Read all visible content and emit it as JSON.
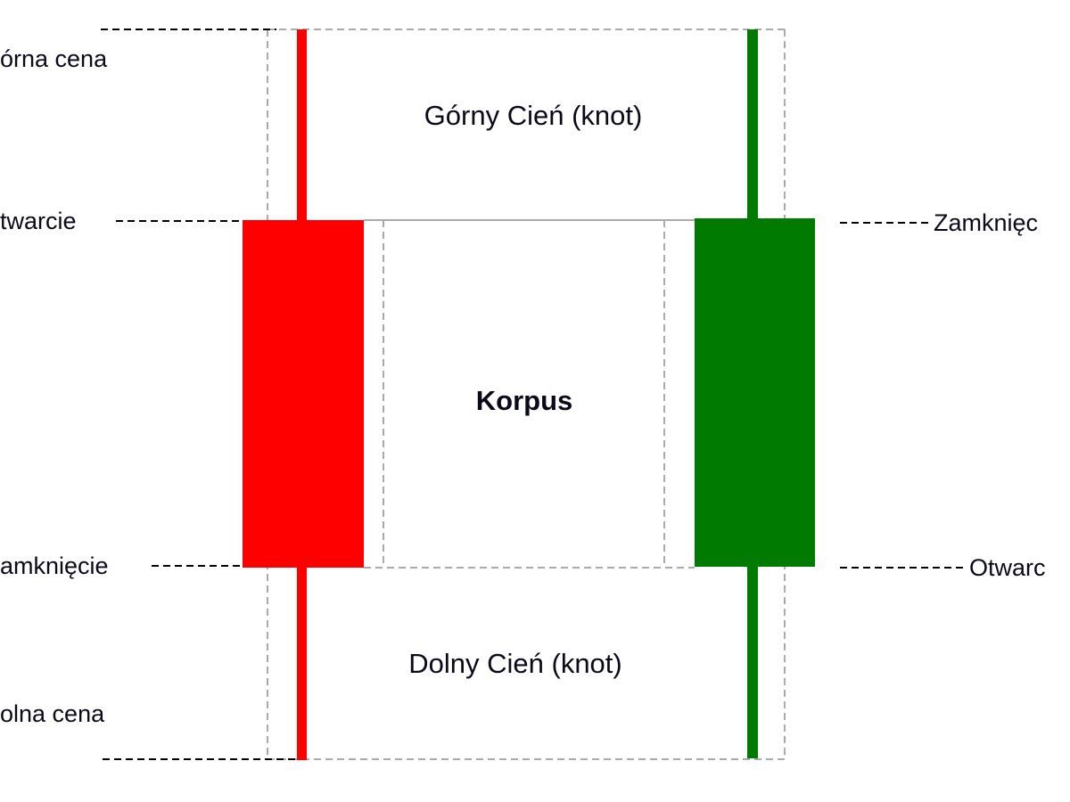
{
  "colors": {
    "bearish": "#ff0000",
    "bullish": "#007a00",
    "guide": "#aaaaaa",
    "leader": "#000000"
  },
  "labels": {
    "upper_shadow": "Górny Cień (knot)",
    "body": "Korpus",
    "lower_shadow": "Dolny Cień (knot)"
  },
  "left_labels": {
    "high": "órna cena",
    "open": "twarcie",
    "close": "amknięcie",
    "low": "olna cena"
  },
  "right_labels": {
    "close": "Zamknięc",
    "open": "Otwarc"
  }
}
